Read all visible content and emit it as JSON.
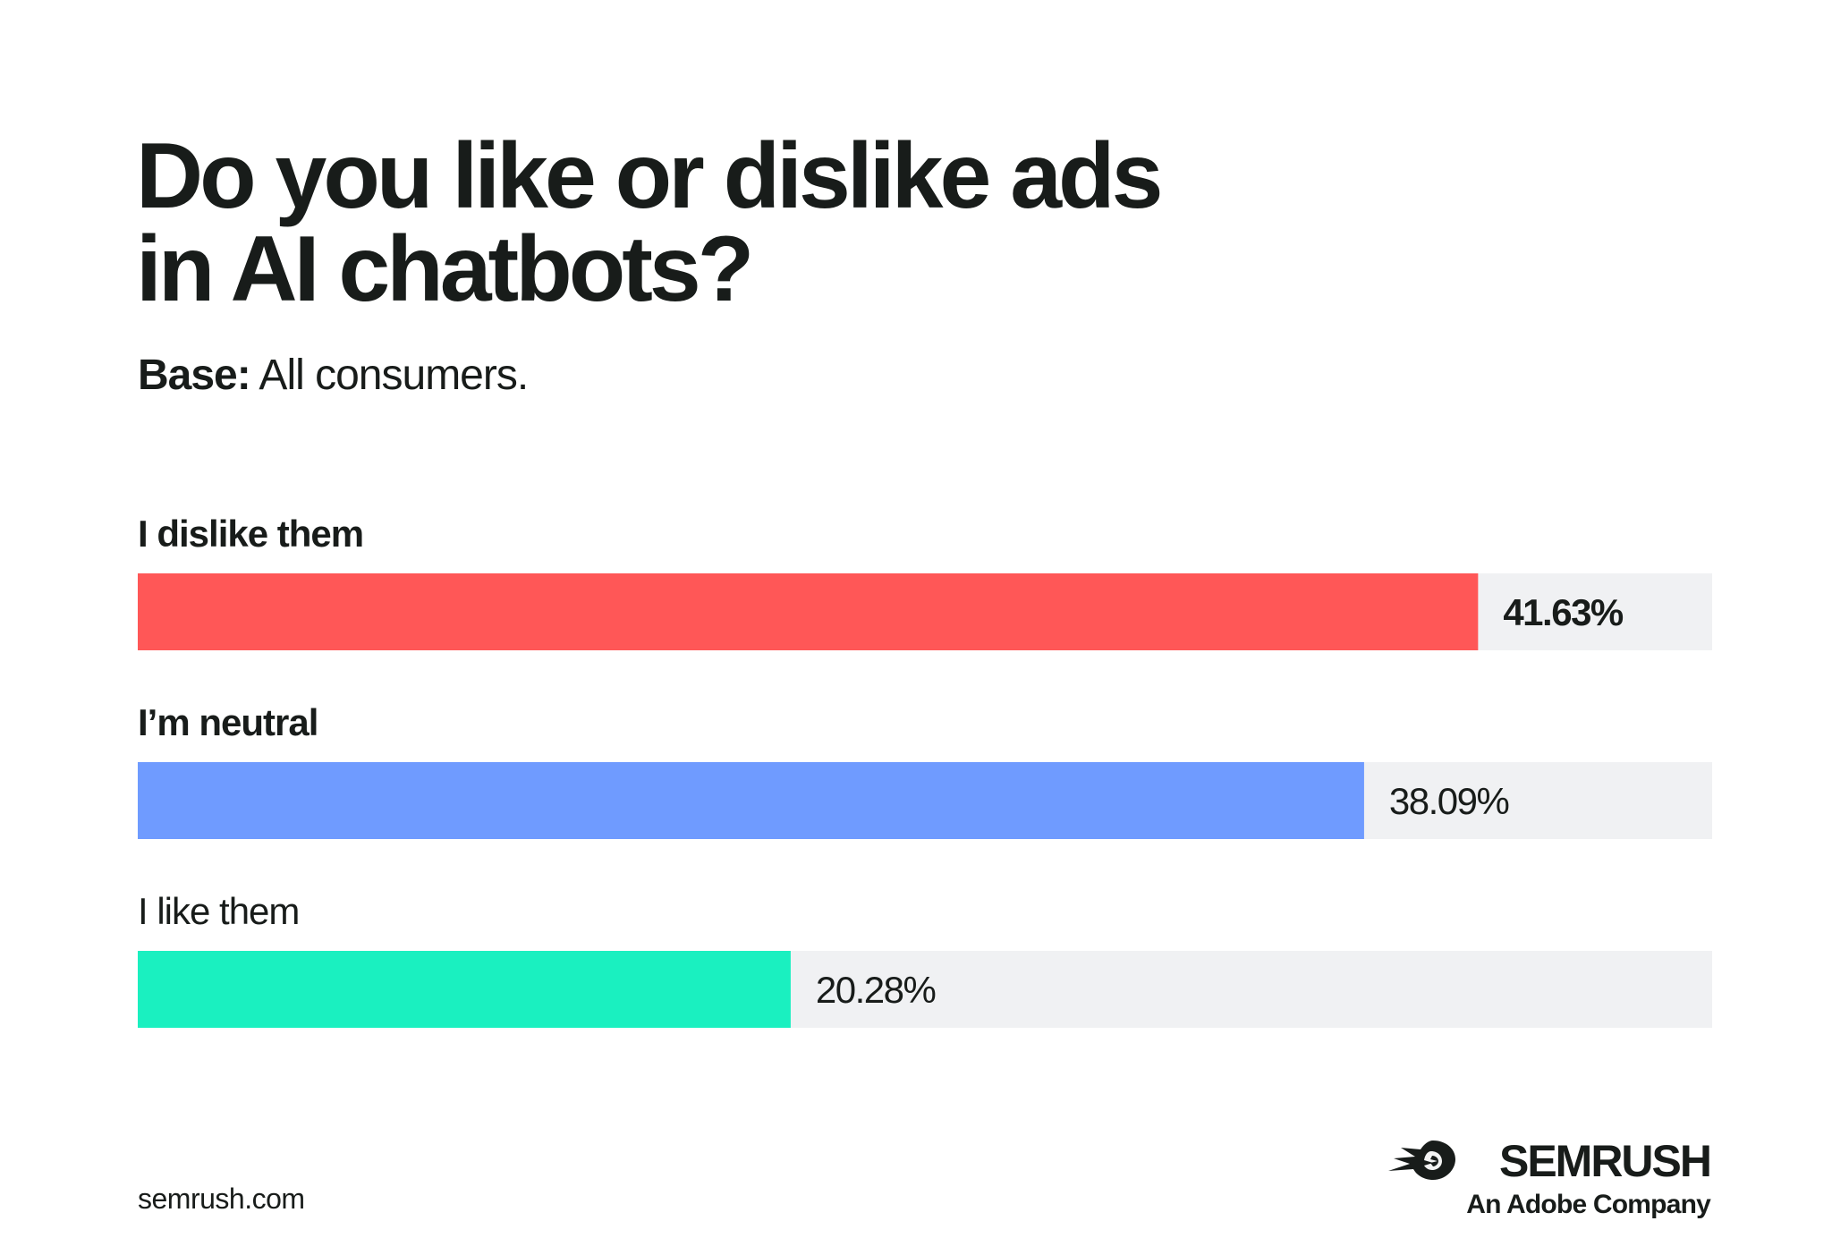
{
  "header": {
    "title_line1": "Do you like or dislike ads",
    "title_line2": "in AI chatbots?",
    "base_label": "Base:",
    "base_value": "All consumers."
  },
  "chart_data": {
    "type": "bar",
    "orientation": "horizontal",
    "categories": [
      "I dislike them",
      "I’m neutral",
      "I like them"
    ],
    "values": [
      41.63,
      38.09,
      20.28
    ],
    "value_labels": [
      "41.63%",
      "38.09%",
      "20.28%"
    ],
    "unit": "%",
    "colors": [
      "#FF5757",
      "#6F9BFF",
      "#1AF0C0"
    ],
    "track_color": "#F0F1F3",
    "xlim": [
      0,
      48.9
    ],
    "grid": false,
    "title": "Do you like or dislike ads in AI chatbots?",
    "xlabel": "",
    "ylabel": ""
  },
  "footer": {
    "url": "semrush.com",
    "logo_name": "SEMRUSH",
    "logo_tagline": "An Adobe Company",
    "logo_icon": "semrush-comet-icon"
  }
}
